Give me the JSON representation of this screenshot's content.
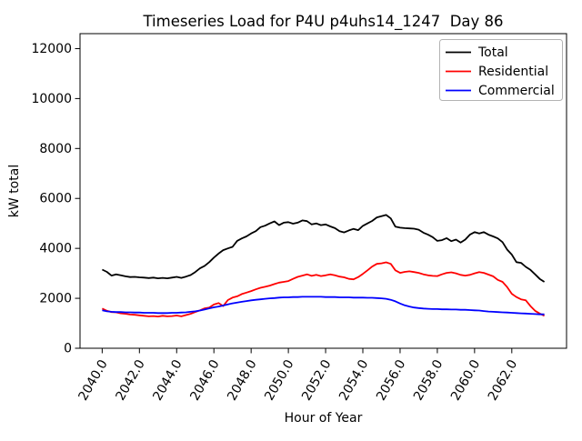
{
  "figure": {
    "background": "#ffffff",
    "title": "Timeseries Load for P4U p4uhs14_1247  Day 86"
  },
  "chart_data": {
    "type": "line",
    "title": "Timeseries Load for P4U p4uhs14_1247  Day 86",
    "xlabel": "Hour of Year",
    "ylabel": "kW total",
    "xlim": [
      2038.81,
      2064.94
    ],
    "ylim": [
      0,
      12600
    ],
    "grid": false,
    "x_start": 2040.0,
    "x_step": 0.25,
    "x_ticks": [
      2040,
      2042,
      2044,
      2046,
      2048,
      2050,
      2052,
      2054,
      2056,
      2058,
      2060,
      2062
    ],
    "x_tick_labels": [
      "2040.0",
      "2042.0",
      "2044.0",
      "2046.0",
      "2048.0",
      "2050.0",
      "2052.0",
      "2054.0",
      "2056.0",
      "2058.0",
      "2060.0",
      "2062.0"
    ],
    "y_ticks": [
      0,
      2000,
      4000,
      6000,
      8000,
      10000,
      12000
    ],
    "y_tick_labels": [
      "0",
      "2000",
      "4000",
      "6000",
      "8000",
      "10000",
      "12000"
    ],
    "legend": {
      "position": "upper right",
      "entries": [
        "Total",
        "Residential",
        "Commercial"
      ]
    },
    "series": [
      {
        "name": "Total",
        "color": "#000000",
        "values": [
          3150,
          3060,
          2910,
          2960,
          2920,
          2880,
          2850,
          2860,
          2840,
          2830,
          2810,
          2830,
          2800,
          2820,
          2800,
          2830,
          2860,
          2820,
          2870,
          2930,
          3050,
          3200,
          3300,
          3450,
          3630,
          3790,
          3930,
          4000,
          4060,
          4300,
          4400,
          4480,
          4600,
          4690,
          4850,
          4910,
          5000,
          5080,
          4930,
          5030,
          5050,
          4990,
          5030,
          5120,
          5090,
          4960,
          5000,
          4930,
          4960,
          4880,
          4810,
          4690,
          4640,
          4720,
          4780,
          4730,
          4900,
          5000,
          5100,
          5240,
          5290,
          5340,
          5200,
          4870,
          4830,
          4810,
          4800,
          4790,
          4750,
          4630,
          4550,
          4450,
          4300,
          4330,
          4410,
          4290,
          4350,
          4230,
          4350,
          4550,
          4650,
          4600,
          4650,
          4550,
          4480,
          4400,
          4250,
          3950,
          3750,
          3450,
          3420,
          3260,
          3140,
          2960,
          2780,
          2660
        ]
      },
      {
        "name": "Residential",
        "color": "#ff0000",
        "values": [
          1590,
          1500,
          1450,
          1440,
          1400,
          1380,
          1350,
          1340,
          1320,
          1300,
          1280,
          1290,
          1270,
          1300,
          1280,
          1290,
          1310,
          1280,
          1330,
          1380,
          1450,
          1520,
          1600,
          1630,
          1750,
          1810,
          1690,
          1930,
          2030,
          2080,
          2170,
          2230,
          2290,
          2360,
          2420,
          2460,
          2510,
          2570,
          2630,
          2660,
          2690,
          2780,
          2860,
          2910,
          2960,
          2900,
          2940,
          2890,
          2920,
          2960,
          2920,
          2870,
          2840,
          2780,
          2760,
          2850,
          2980,
          3120,
          3270,
          3380,
          3400,
          3440,
          3380,
          3120,
          3020,
          3060,
          3080,
          3050,
          3020,
          2960,
          2920,
          2900,
          2890,
          2960,
          3020,
          3040,
          3000,
          2940,
          2910,
          2940,
          3000,
          3050,
          3020,
          2950,
          2880,
          2740,
          2660,
          2450,
          2180,
          2050,
          1960,
          1920,
          1690,
          1500,
          1390,
          1300
        ]
      },
      {
        "name": "Commercial",
        "color": "#0000ff",
        "values": [
          1520,
          1480,
          1460,
          1450,
          1450,
          1440,
          1440,
          1430,
          1430,
          1420,
          1420,
          1420,
          1410,
          1410,
          1410,
          1420,
          1420,
          1430,
          1440,
          1460,
          1480,
          1510,
          1550,
          1600,
          1640,
          1670,
          1710,
          1760,
          1800,
          1830,
          1860,
          1890,
          1920,
          1940,
          1960,
          1980,
          2000,
          2010,
          2030,
          2040,
          2040,
          2050,
          2050,
          2060,
          2060,
          2060,
          2060,
          2060,
          2050,
          2050,
          2050,
          2040,
          2040,
          2040,
          2030,
          2030,
          2030,
          2020,
          2020,
          2010,
          2000,
          1980,
          1940,
          1880,
          1790,
          1720,
          1670,
          1630,
          1610,
          1590,
          1580,
          1570,
          1570,
          1560,
          1560,
          1550,
          1550,
          1540,
          1540,
          1530,
          1520,
          1510,
          1490,
          1470,
          1460,
          1450,
          1440,
          1430,
          1420,
          1410,
          1400,
          1390,
          1380,
          1370,
          1360,
          1360
        ]
      }
    ],
    "style": {
      "line_width": 1.8,
      "axes_color": "#000000",
      "legend_border_color": "#b3b3b3",
      "x_tick_label_rotation_deg": 60
    }
  }
}
